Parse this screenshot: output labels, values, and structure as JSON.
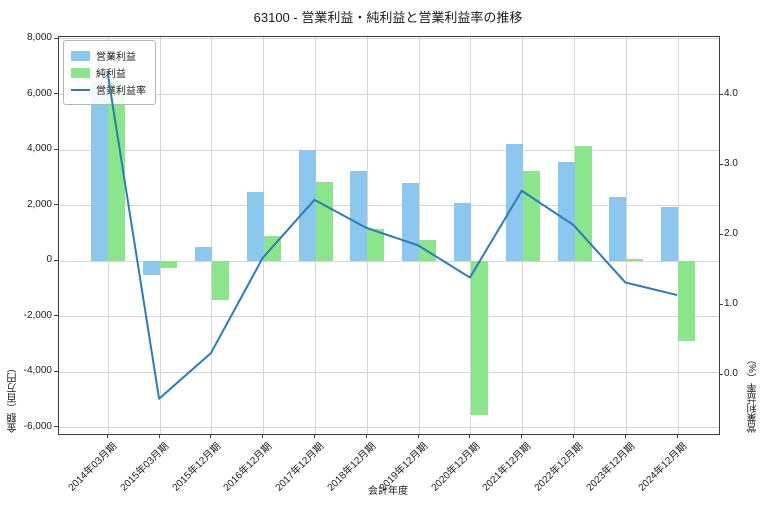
{
  "title": "63100 - 営業利益・純利益と営業利益率の推移",
  "chart_data": {
    "type": "bar+line",
    "title": "63100 - 営業利益・純利益と営業利益率の推移",
    "categories": [
      "2014年03月期",
      "2015年03月期",
      "2015年12月期",
      "2016年12月期",
      "2017年12月期",
      "2018年12月期",
      "2019年12月期",
      "2020年12月期",
      "2021年12月期",
      "2022年12月期",
      "2023年12月期",
      "2024年12月期"
    ],
    "series": [
      {
        "name": "営業利益",
        "type": "bar",
        "axis": "left",
        "color": "#8cc7ef",
        "values": [
          6500,
          -500,
          500,
          2500,
          4000,
          3250,
          2800,
          2100,
          4200,
          3550,
          2300,
          1950
        ]
      },
      {
        "name": "純利益",
        "type": "bar",
        "axis": "left",
        "color": "#8be58b",
        "values": [
          6450,
          -250,
          -1400,
          900,
          2850,
          1150,
          750,
          -5550,
          3250,
          4150,
          90,
          -2900
        ]
      },
      {
        "name": "営業利益率",
        "type": "line",
        "axis": "right",
        "color": "#2b7cb9",
        "values": [
          4.33,
          -0.35,
          0.3,
          1.66,
          2.49,
          2.09,
          1.84,
          1.38,
          2.62,
          2.13,
          1.31,
          1.13
        ]
      }
    ],
    "xlabel": "会計年度",
    "ylabel_left": "金額（百万円）",
    "ylabel_right": "営業利益率（%）",
    "ylim_left": [
      -6000,
      8000
    ],
    "ylim_right": [
      -0.84,
      4.83
    ],
    "yticks_left": [
      {
        "v": 8000,
        "label": "8,000"
      },
      {
        "v": 6000,
        "label": "6,000"
      },
      {
        "v": 4000,
        "label": "4,000"
      },
      {
        "v": 2000,
        "label": "2,000"
      },
      {
        "v": 0,
        "label": "0"
      },
      {
        "v": -2000,
        "label": "-2,000"
      },
      {
        "v": -4000,
        "label": "-4,000"
      },
      {
        "v": -6000,
        "label": "-6,000"
      }
    ],
    "yticks_right": [
      {
        "v": 4.0,
        "label": "4.0"
      },
      {
        "v": 3.0,
        "label": "3.0"
      },
      {
        "v": 2.0,
        "label": "2.0"
      },
      {
        "v": 1.0,
        "label": "1.0"
      },
      {
        "v": 0.0,
        "label": "0.0"
      }
    ],
    "grid": true,
    "legend_position": "upper left"
  },
  "colors": {
    "background": "#ffffff",
    "grid": "#d6d6d6",
    "spine": "#3d3d3d",
    "text": "#1a1a1a",
    "bar_operating_profit": "#8cc7ef",
    "bar_net_profit": "#8be58b",
    "line_operating_margin": "#2b7cb9"
  }
}
